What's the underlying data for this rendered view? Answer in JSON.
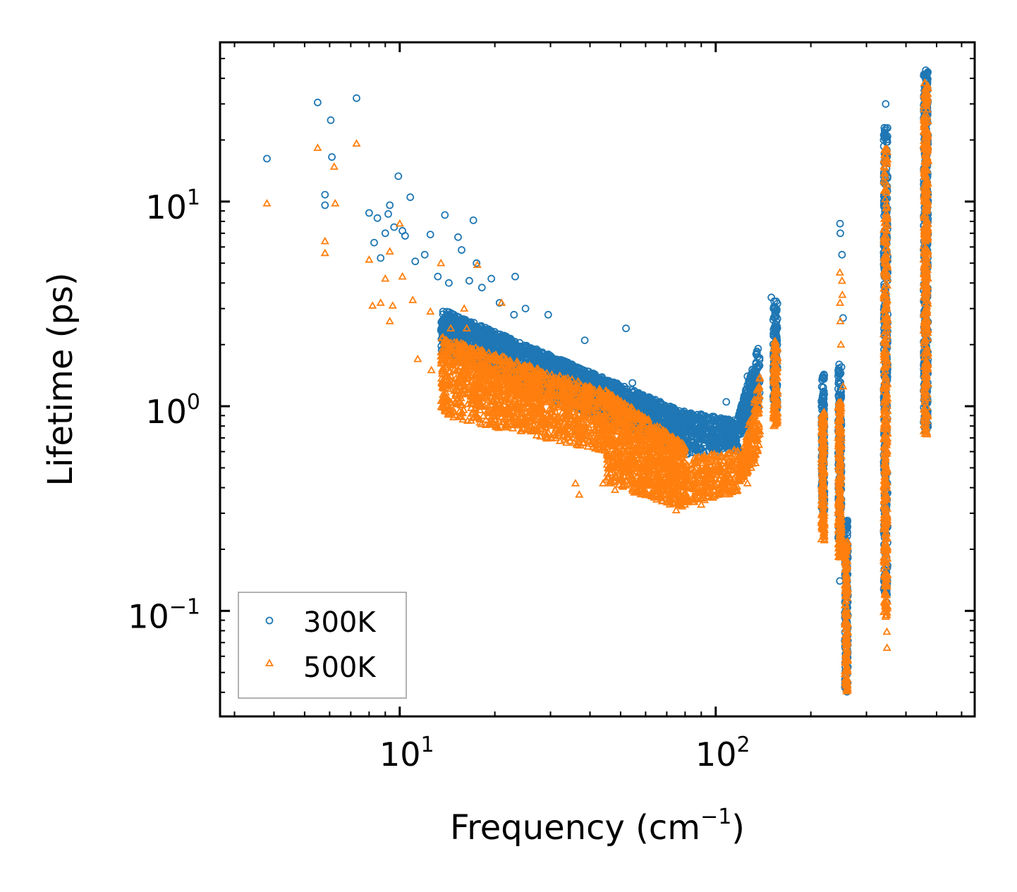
{
  "chart_data": {
    "type": "scatter",
    "xlabel": "Frequency (cm",
    "xlabel_sup": "−1",
    "xlabel_end": ")",
    "ylabel": "Lifetime (ps)",
    "xscale": "log",
    "yscale": "log",
    "xlim": [
      2.7,
      660
    ],
    "ylim": [
      0.0305,
      60
    ],
    "x_ticks": [
      {
        "value": 10,
        "base": "10",
        "exp": "1"
      },
      {
        "value": 100,
        "base": "10",
        "exp": "2"
      }
    ],
    "y_ticks": [
      {
        "value": 0.1,
        "base": "10",
        "exp": "−1"
      },
      {
        "value": 1,
        "base": "10",
        "exp": "0"
      },
      {
        "value": 10,
        "base": "10",
        "exp": "1"
      }
    ],
    "legend_position": "lower-left",
    "colors": {
      "s300": "#1f77b4",
      "s500": "#ff7f0e"
    },
    "series": [
      {
        "name": "300K",
        "marker": "circle",
        "color": "#1f77b4",
        "points": [
          [
            3.8,
            16.2
          ],
          [
            5.5,
            30.5
          ],
          [
            5.8,
            10.8
          ],
          [
            5.8,
            9.6
          ],
          [
            6.05,
            25.0
          ],
          [
            6.1,
            16.5
          ],
          [
            7.3,
            32.0
          ],
          [
            8.0,
            8.8
          ],
          [
            8.5,
            8.3
          ],
          [
            8.3,
            6.3
          ],
          [
            8.7,
            5.3
          ],
          [
            9.0,
            7.0
          ],
          [
            9.3,
            9.6
          ],
          [
            9.2,
            8.7
          ],
          [
            9.6,
            7.5
          ],
          [
            9.9,
            13.3
          ],
          [
            10.2,
            7.2
          ],
          [
            10.4,
            6.8
          ],
          [
            10.8,
            10.5
          ],
          [
            11.2,
            5.1
          ],
          [
            12.0,
            5.5
          ],
          [
            12.5,
            6.9
          ],
          [
            13.2,
            4.3
          ],
          [
            13.9,
            8.6
          ],
          [
            14.3,
            4.0
          ],
          [
            15.3,
            6.7
          ],
          [
            15.7,
            5.8
          ],
          [
            16.6,
            4.1
          ],
          [
            17.1,
            8.1
          ],
          [
            17.5,
            5.0
          ],
          [
            18.2,
            3.8
          ],
          [
            19.5,
            4.2
          ],
          [
            20.7,
            3.2
          ],
          [
            23.0,
            2.8
          ],
          [
            23.2,
            4.3
          ],
          [
            25.0,
            3.0
          ],
          [
            29.5,
            2.8
          ],
          [
            38.5,
            2.1
          ],
          [
            52.0,
            2.4
          ],
          [
            54.5,
            1.3
          ],
          [
            62.0,
            1.1
          ],
          [
            72.0,
            0.95
          ],
          [
            85.0,
            0.88
          ],
          [
            95.0,
            0.85
          ],
          [
            108.0,
            1.05
          ],
          [
            126.0,
            1.4
          ],
          [
            150.0,
            3.4
          ],
          [
            247.5,
            7.8
          ],
          [
            248.0,
            7.0
          ],
          [
            251.0,
            5.5
          ],
          [
            253.0,
            2.7
          ],
          [
            247.0,
            0.14
          ],
          [
            345.0,
            30.0
          ],
          [
            347.0,
            3.3
          ],
          [
            348.0,
            0.11
          ]
        ],
        "clusters": [
          {
            "x": [
              13.5,
              78
            ],
            "y_hi": [
              3.0,
              0.95
            ],
            "y_lo": [
              1.8,
              0.6
            ],
            "n": 2600
          },
          {
            "x": [
              78,
              118
            ],
            "y_hi": [
              0.95,
              0.85
            ],
            "y_lo": [
              0.58,
              0.6
            ],
            "n": 420
          },
          {
            "x": [
              118,
              138
            ],
            "y_hi": [
              0.9,
              2.1
            ],
            "y_lo": [
              0.7,
              1.0
            ],
            "n": 240
          },
          {
            "x": [
              152,
              157
            ],
            "y_hi": [
              3.3,
              3.3
            ],
            "y_lo": [
              0.95,
              0.95
            ],
            "n": 130
          },
          {
            "x": [
              216,
              221
            ],
            "y_hi": [
              1.45,
              1.45
            ],
            "y_lo": [
              0.3,
              0.3
            ],
            "n": 160
          },
          {
            "x": [
              244,
              250
            ],
            "y_hi": [
              1.6,
              1.6
            ],
            "y_lo": [
              0.22,
              0.22
            ],
            "n": 180
          },
          {
            "x": [
              256,
              262
            ],
            "y_hi": [
              0.28,
              0.28
            ],
            "y_lo": [
              0.04,
              0.04
            ],
            "n": 170
          },
          {
            "x": [
              340,
              350
            ],
            "y_hi": [
              23.0,
              23.0
            ],
            "y_lo": [
              0.12,
              0.12
            ],
            "n": 380
          },
          {
            "x": [
              455,
              470
            ],
            "y_hi": [
              44.0,
              44.0
            ],
            "y_lo": [
              0.75,
              0.75
            ],
            "n": 420
          }
        ]
      },
      {
        "name": "500K",
        "marker": "triangle",
        "color": "#ff7f0e",
        "points": [
          [
            3.8,
            9.8
          ],
          [
            5.5,
            18.3
          ],
          [
            5.8,
            6.4
          ],
          [
            5.8,
            5.6
          ],
          [
            6.2,
            14.8
          ],
          [
            6.25,
            9.8
          ],
          [
            7.3,
            19.2
          ],
          [
            8.0,
            5.2
          ],
          [
            8.2,
            3.1
          ],
          [
            8.7,
            3.2
          ],
          [
            9.0,
            4.2
          ],
          [
            9.3,
            2.6
          ],
          [
            9.3,
            5.7
          ],
          [
            9.5,
            3.1
          ],
          [
            10.0,
            7.8
          ],
          [
            10.2,
            4.3
          ],
          [
            11.0,
            3.3
          ],
          [
            11.4,
            1.7
          ],
          [
            12.5,
            2.9
          ],
          [
            12.6,
            1.5
          ],
          [
            13.5,
            5.0
          ],
          [
            13.6,
            1.7
          ],
          [
            14.0,
            1.05
          ],
          [
            14.5,
            2.4
          ],
          [
            16.0,
            3.0
          ],
          [
            16.3,
            2.4
          ],
          [
            17.6,
            4.9
          ],
          [
            19.8,
            1.2
          ],
          [
            21.0,
            3.2
          ],
          [
            21.5,
            0.88
          ],
          [
            22.8,
            0.78
          ],
          [
            27.0,
            0.86
          ],
          [
            29.0,
            0.79
          ],
          [
            32.0,
            0.76
          ],
          [
            36.0,
            0.42
          ],
          [
            37.0,
            0.37
          ],
          [
            44.0,
            0.42
          ],
          [
            48.0,
            0.39
          ],
          [
            55.0,
            0.42
          ],
          [
            60.0,
            0.5
          ],
          [
            65.0,
            0.35
          ],
          [
            75.0,
            0.31
          ],
          [
            90.0,
            0.33
          ],
          [
            110.0,
            0.45
          ],
          [
            126.0,
            0.42
          ],
          [
            247.0,
            4.5
          ],
          [
            247.5,
            3.2
          ],
          [
            248.0,
            2.6
          ],
          [
            249.0,
            2.0
          ],
          [
            251.0,
            4.1
          ],
          [
            251.5,
            3.5
          ],
          [
            253.0,
            1.25
          ],
          [
            345.0,
            18.0
          ],
          [
            348.0,
            0.079
          ],
          [
            348.5,
            0.066
          ],
          [
            463.0,
            0.75
          ]
        ],
        "clusters": [
          {
            "x": [
              13.5,
              45
            ],
            "y_hi": [
              2.2,
              1.2
            ],
            "y_lo": [
              0.9,
              0.6
            ],
            "n": 1500
          },
          {
            "x": [
              45,
              80
            ],
            "y_hi": [
              1.2,
              0.65
            ],
            "y_lo": [
              0.42,
              0.31
            ],
            "n": 1100
          },
          {
            "x": [
              80,
              118
            ],
            "y_hi": [
              0.55,
              0.62
            ],
            "y_lo": [
              0.33,
              0.38
            ],
            "n": 280
          },
          {
            "x": [
              118,
              138
            ],
            "y_hi": [
              0.5,
              1.4
            ],
            "y_lo": [
              0.42,
              0.55
            ],
            "n": 220
          },
          {
            "x": [
              152,
              157
            ],
            "y_hi": [
              2.1,
              2.1
            ],
            "y_lo": [
              0.8,
              0.8
            ],
            "n": 130
          },
          {
            "x": [
              216,
              221
            ],
            "y_hi": [
              0.95,
              0.95
            ],
            "y_lo": [
              0.22,
              0.22
            ],
            "n": 160
          },
          {
            "x": [
              244,
              250
            ],
            "y_hi": [
              1.1,
              1.1
            ],
            "y_lo": [
              0.18,
              0.18
            ],
            "n": 180
          },
          {
            "x": [
              256,
              262
            ],
            "y_hi": [
              0.22,
              0.22
            ],
            "y_lo": [
              0.04,
              0.04
            ],
            "n": 170
          },
          {
            "x": [
              340,
              350
            ],
            "y_hi": [
              19.0,
              19.0
            ],
            "y_lo": [
              0.09,
              0.09
            ],
            "n": 380
          },
          {
            "x": [
              455,
              470
            ],
            "y_hi": [
              38.0,
              38.0
            ],
            "y_lo": [
              0.72,
              0.72
            ],
            "n": 420
          }
        ]
      }
    ]
  }
}
